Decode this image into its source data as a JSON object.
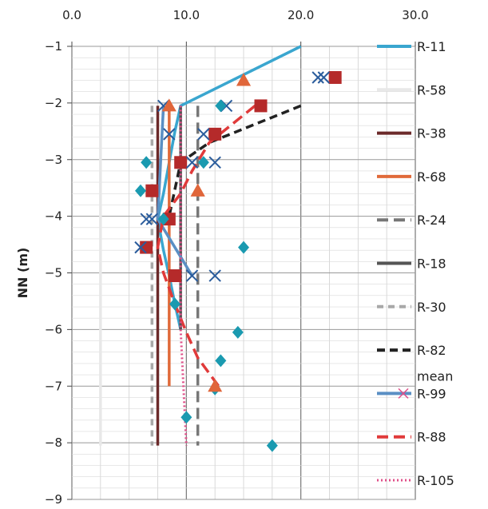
{
  "chart_data": {
    "type": "line",
    "title": "",
    "xlabel": "",
    "ylabel": "NN (m)",
    "xlim": [
      0,
      30
    ],
    "ylim": [
      -9,
      -1
    ],
    "x_axis_position": "top",
    "x_ticks": [
      "0.0",
      "10.0",
      "20.0",
      "30.0"
    ],
    "y_ticks": [
      "-1",
      "-2",
      "-3",
      "-4",
      "-5",
      "-6",
      "-7",
      "-8",
      "-9"
    ],
    "grid": true,
    "legend_position": "right",
    "series": [
      {
        "name": "R-11",
        "color": "#3aa6cf",
        "dash": "solid",
        "marker": "triangle",
        "marker_color": "#e0663a",
        "points": [
          [
            20.0,
            -1.0
          ],
          [
            9.5,
            -2.05
          ],
          [
            9.0,
            -2.5
          ],
          [
            8.5,
            -3.05
          ],
          [
            8.0,
            -3.6
          ],
          [
            7.5,
            -4.05
          ],
          [
            8.0,
            -4.6
          ],
          [
            8.5,
            -5.05
          ],
          [
            9.0,
            -5.55
          ],
          [
            9.5,
            -6.0
          ]
        ],
        "markers": [
          [
            15.0,
            -1.6
          ],
          [
            11.0,
            -3.55
          ]
        ]
      },
      {
        "name": "R-58",
        "color": "#e8e8e8",
        "dash": "solid",
        "marker": "none",
        "points": [
          [
            2.5,
            -2.05
          ],
          [
            2.5,
            -8.05
          ]
        ]
      },
      {
        "name": "R-38",
        "color": "#6b2a2a",
        "dash": "solid",
        "marker": "square",
        "marker_color": "#b52a2a",
        "points": [
          [
            7.5,
            -2.05
          ],
          [
            7.5,
            -8.05
          ]
        ],
        "markers": [
          [
            23.0,
            -1.55
          ],
          [
            16.5,
            -2.05
          ],
          [
            12.5,
            -2.55
          ],
          [
            9.5,
            -3.05
          ],
          [
            7.0,
            -3.55
          ],
          [
            8.5,
            -4.05
          ],
          [
            6.5,
            -4.55
          ],
          [
            9.0,
            -5.05
          ]
        ]
      },
      {
        "name": "R-68",
        "color": "#e06a3a",
        "dash": "solid",
        "marker": "none",
        "points": [
          [
            8.5,
            -2.05
          ],
          [
            8.5,
            -7.0
          ]
        ]
      },
      {
        "name": "R-24",
        "color": "#777777",
        "dash": "long-dash",
        "marker": "none",
        "points": [
          [
            11.0,
            -2.05
          ],
          [
            11.0,
            -8.05
          ]
        ]
      },
      {
        "name": "R-18",
        "color": "#555555",
        "dash": "solid",
        "marker": "none",
        "points": [
          [
            9.5,
            -2.05
          ],
          [
            9.5,
            -6.0
          ]
        ]
      },
      {
        "name": "R-30",
        "color": "#a8a8a8",
        "dash": "medium-dash",
        "marker": "none",
        "points": [
          [
            7.0,
            -2.05
          ],
          [
            7.0,
            -8.05
          ]
        ]
      },
      {
        "name": "R-82",
        "color": "#222222",
        "dash": "dash",
        "marker": "none",
        "points": [
          [
            20.0,
            -2.05
          ],
          [
            12.0,
            -2.7
          ],
          [
            9.5,
            -3.05
          ],
          [
            8.5,
            -4.0
          ]
        ]
      },
      {
        "name": "mean R-99",
        "color": "#5a8fc4",
        "dash": "solid",
        "marker": "x",
        "marker_color": "#2a5c9c",
        "points": [
          [
            8.0,
            -2.05
          ],
          [
            7.5,
            -4.05
          ],
          [
            10.5,
            -5.05
          ]
        ],
        "markers": [
          [
            21.5,
            -1.55
          ],
          [
            22.0,
            -1.55
          ],
          [
            13.5,
            -2.05
          ],
          [
            12.5,
            -3.05
          ],
          [
            10.5,
            -3.05
          ],
          [
            11.5,
            -2.55
          ],
          [
            6.5,
            -4.05
          ],
          [
            7.0,
            -4.05
          ],
          [
            6.0,
            -4.55
          ],
          [
            10.5,
            -5.05
          ],
          [
            12.5,
            -5.05
          ],
          [
            8.5,
            -2.55
          ],
          [
            8.0,
            -2.05
          ]
        ]
      },
      {
        "name": "R-88",
        "color": "#e03a3a",
        "dash": "long-dash",
        "marker": "none",
        "points": [
          [
            16.0,
            -2.05
          ],
          [
            12.0,
            -2.7
          ],
          [
            10.5,
            -3.2
          ],
          [
            9.5,
            -3.6
          ],
          [
            8.0,
            -4.0
          ],
          [
            7.5,
            -4.55
          ],
          [
            8.0,
            -5.0
          ],
          [
            9.0,
            -5.55
          ],
          [
            10.0,
            -6.05
          ],
          [
            11.0,
            -6.5
          ],
          [
            13.0,
            -7.05
          ]
        ]
      },
      {
        "name": "R-105",
        "color": "#e0508a",
        "dash": "dotted",
        "marker": "none",
        "points": [
          [
            9.5,
            -2.05
          ],
          [
            9.5,
            -6.0
          ],
          [
            10.0,
            -8.05
          ]
        ]
      }
    ],
    "extra_markers": {
      "diamonds": {
        "color": "#1a9ab0",
        "points": [
          [
            6.5,
            -3.05
          ],
          [
            6.0,
            -3.55
          ],
          [
            13.0,
            -2.05
          ],
          [
            11.5,
            -3.05
          ],
          [
            15.0,
            -4.55
          ],
          [
            14.5,
            -6.05
          ],
          [
            13.0,
            -6.55
          ],
          [
            12.5,
            -7.05
          ],
          [
            10.0,
            -7.55
          ],
          [
            17.5,
            -8.05
          ],
          [
            9.0,
            -5.55
          ],
          [
            8.0,
            -4.05
          ]
        ]
      },
      "triangles": {
        "color": "#e0663a",
        "points": [
          [
            15.0,
            -1.6
          ],
          [
            11.0,
            -3.55
          ],
          [
            12.5,
            -7.0
          ],
          [
            8.5,
            -2.05
          ]
        ]
      }
    }
  }
}
